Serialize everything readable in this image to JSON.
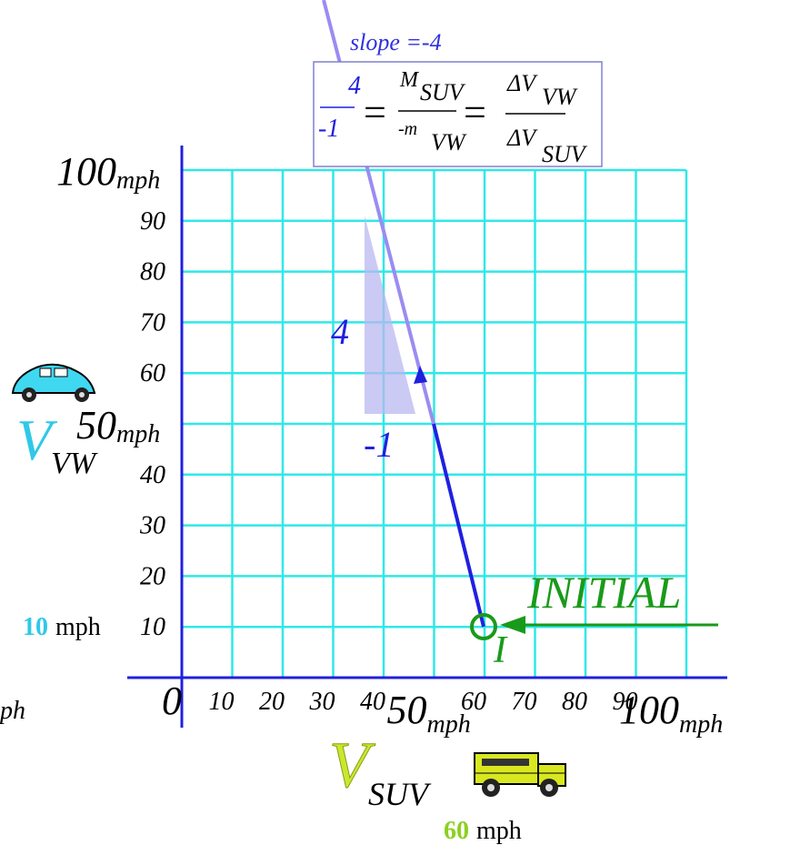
{
  "equation": {
    "slope_label": "slope =-4",
    "lhs_num": "4",
    "lhs_den": "-1",
    "m_num": "M",
    "m_num_sub": "SUV",
    "m_den": "-m",
    "m_den_sub": "VW",
    "dv_num": "ΔV",
    "dv_num_sub": "VW",
    "dv_den": "ΔV",
    "dv_den_sub": "SUV",
    "equals": "="
  },
  "axes": {
    "origin": "0",
    "x_ticks": [
      10,
      20,
      30,
      40,
      50,
      60,
      70,
      80,
      90,
      100
    ],
    "y_ticks": [
      10,
      20,
      30,
      40,
      50,
      60,
      70,
      80,
      90,
      100
    ],
    "unit": "mph",
    "edge_fragment": "ph"
  },
  "triangle": {
    "rise": "4",
    "run": "-1"
  },
  "initial": {
    "label": "INITIAL",
    "point": "I"
  },
  "vw": {
    "symbol": "V",
    "subscript": "VW",
    "speed": "10",
    "unit": "mph"
  },
  "suv": {
    "symbol": "V",
    "subscript": "SUV",
    "speed": "60",
    "unit": "mph"
  }
}
